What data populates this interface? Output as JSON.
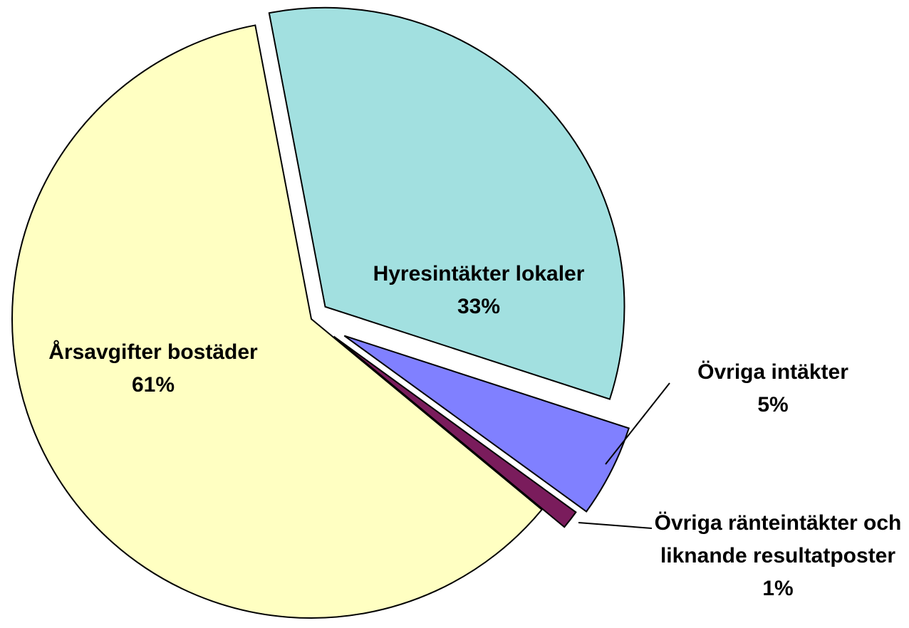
{
  "chart_data": {
    "type": "pie",
    "categories": [
      "Hyresintäkter lokaler",
      "Övriga intäkter",
      "Övriga ränteintäkter och liknande resultatposter",
      "Årsavgifter bostäder"
    ],
    "values": [
      33,
      5,
      1,
      61
    ],
    "value_labels": [
      "33%",
      "5%",
      "1%",
      "61%"
    ],
    "colors": [
      "#a2e0e0",
      "#8080ff",
      "#7a1c5c",
      "#ffffc2"
    ]
  }
}
